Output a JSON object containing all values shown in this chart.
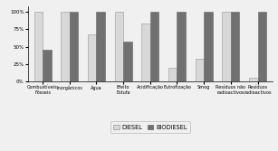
{
  "categories": [
    "Combustíveis\nFósseis",
    "Inorgânicos",
    "Água",
    "Efeito\nEstufa",
    "Acidificação",
    "Eutrofização",
    "Smog",
    "Resíduos não\nradioactivos",
    "Resíduos\nradioactivos"
  ],
  "diesel": [
    100,
    100,
    68,
    100,
    83,
    20,
    32,
    100,
    6
  ],
  "biodiesel": [
    45,
    100,
    100,
    57,
    100,
    100,
    100,
    100,
    100
  ],
  "diesel_color": "#d8d8d8",
  "biodiesel_color": "#707070",
  "ylabel_ticks": [
    "0%",
    "25%",
    "50%",
    "75%",
    "100%"
  ],
  "ylabel_vals": [
    0,
    25,
    50,
    75,
    100
  ],
  "legend_diesel": "DIESEL",
  "legend_biodiesel": "BIODIESEL",
  "background_color": "#f0f0f0",
  "bar_width": 0.32,
  "tick_fontsize": 4.0,
  "label_fontsize": 3.6,
  "ylim_max": 108
}
